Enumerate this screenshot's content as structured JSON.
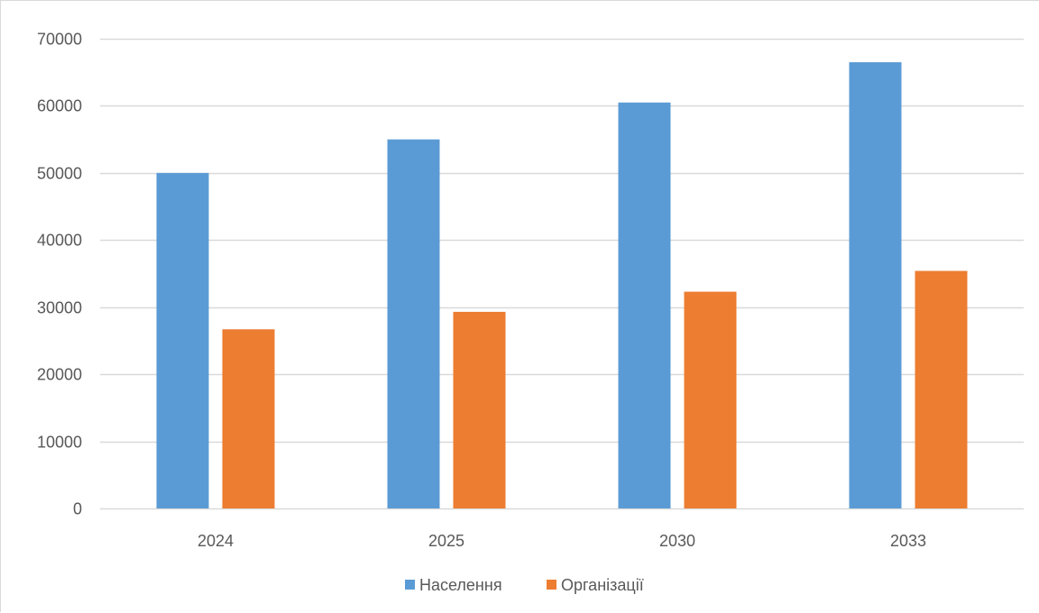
{
  "chart_data": {
    "type": "bar",
    "categories": [
      "2024",
      "2025",
      "2030",
      "2033"
    ],
    "series": [
      {
        "name": "Населення",
        "values": [
          50000,
          55000,
          60500,
          66500
        ],
        "color": "#5b9bd5"
      },
      {
        "name": "Організації",
        "values": [
          26700,
          29300,
          32300,
          35400
        ],
        "color": "#ed7d31"
      }
    ],
    "ylim": [
      0,
      70000
    ],
    "yticks": [
      "0",
      "10000",
      "20000",
      "30000",
      "40000",
      "50000",
      "60000",
      "70000"
    ],
    "grid": true,
    "legend_position": "bottom",
    "gridline_color": "#d9d9d9",
    "axis_line_color": "#d9d9d9"
  }
}
